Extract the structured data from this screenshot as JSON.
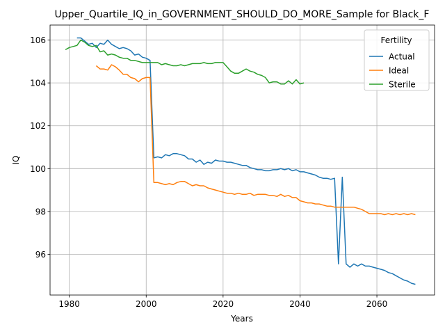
{
  "chart_data": {
    "type": "line",
    "title": "Upper_Quartile_IQ_in_GOVERNMENT_SHOULD_DO_MORE_Sample for Black_F",
    "xlabel": "Years",
    "ylabel": "IQ",
    "xlim": [
      1975,
      2075
    ],
    "ylim": [
      94.1,
      106.7
    ],
    "x_ticks": [
      1980,
      2000,
      2020,
      2040,
      2060
    ],
    "y_ticks": [
      96,
      98,
      100,
      102,
      104,
      106
    ],
    "grid": true,
    "legend": {
      "title": "Fertility",
      "placement": "top-right"
    },
    "series": [
      {
        "name": "Actual",
        "color": "#1f77b4",
        "x": [
          1982,
          1983,
          1984,
          1985,
          1986,
          1987,
          1988,
          1989,
          1990,
          1991,
          1992,
          1993,
          1994,
          1995,
          1996,
          1997,
          1998,
          1999,
          2000,
          2001,
          2002,
          2003,
          2004,
          2005,
          2006,
          2007,
          2008,
          2009,
          2010,
          2011,
          2012,
          2013,
          2014,
          2015,
          2016,
          2017,
          2018,
          2019,
          2020,
          2021,
          2022,
          2023,
          2024,
          2025,
          2026,
          2027,
          2028,
          2029,
          2030,
          2031,
          2032,
          2033,
          2034,
          2035,
          2036,
          2037,
          2038,
          2039,
          2040,
          2041,
          2042,
          2043,
          2044,
          2045,
          2046,
          2047,
          2048,
          2049,
          2050,
          2051,
          2052,
          2053,
          2054,
          2055,
          2056,
          2057,
          2058,
          2059,
          2060,
          2061,
          2062,
          2063,
          2064,
          2065,
          2066,
          2067,
          2068,
          2069,
          2070
        ],
        "values": [
          106.1,
          106.1,
          105.95,
          105.8,
          105.85,
          105.65,
          105.85,
          105.8,
          106.0,
          105.8,
          105.7,
          105.6,
          105.65,
          105.6,
          105.5,
          105.3,
          105.35,
          105.2,
          105.15,
          105.05,
          100.5,
          100.55,
          100.5,
          100.65,
          100.6,
          100.7,
          100.7,
          100.65,
          100.6,
          100.45,
          100.45,
          100.3,
          100.4,
          100.2,
          100.3,
          100.25,
          100.4,
          100.35,
          100.35,
          100.3,
          100.3,
          100.25,
          100.2,
          100.15,
          100.15,
          100.05,
          100.0,
          99.95,
          99.95,
          99.9,
          99.9,
          99.95,
          99.95,
          100.0,
          99.95,
          100.0,
          99.9,
          99.95,
          99.85,
          99.85,
          99.8,
          99.75,
          99.7,
          99.6,
          99.55,
          99.55,
          99.5,
          99.55,
          95.55,
          99.6,
          95.55,
          95.4,
          95.55,
          95.45,
          95.55,
          95.45,
          95.45,
          95.4,
          95.35,
          95.3,
          95.25,
          95.15,
          95.1,
          95.0,
          94.9,
          94.8,
          94.75,
          94.65,
          94.6
        ]
      },
      {
        "name": "Ideal",
        "color": "#ff7f0e",
        "x": [
          1987,
          1988,
          1989,
          1990,
          1991,
          1992,
          1993,
          1994,
          1995,
          1996,
          1997,
          1998,
          1999,
          2000,
          2001,
          2002,
          2003,
          2004,
          2005,
          2006,
          2007,
          2008,
          2009,
          2010,
          2011,
          2012,
          2013,
          2014,
          2015,
          2016,
          2017,
          2018,
          2019,
          2020,
          2021,
          2022,
          2023,
          2024,
          2025,
          2026,
          2027,
          2028,
          2029,
          2030,
          2031,
          2032,
          2033,
          2034,
          2035,
          2036,
          2037,
          2038,
          2039,
          2040,
          2041,
          2042,
          2043,
          2044,
          2045,
          2046,
          2047,
          2048,
          2049,
          2050,
          2051,
          2052,
          2053,
          2054,
          2055,
          2056,
          2057,
          2058,
          2059,
          2060,
          2061,
          2062,
          2063,
          2064,
          2065,
          2066,
          2067,
          2068,
          2069,
          2070
        ],
        "values": [
          104.8,
          104.65,
          104.65,
          104.6,
          104.85,
          104.75,
          104.6,
          104.4,
          104.4,
          104.25,
          104.2,
          104.05,
          104.2,
          104.25,
          104.25,
          99.35,
          99.35,
          99.3,
          99.25,
          99.3,
          99.25,
          99.35,
          99.4,
          99.4,
          99.3,
          99.2,
          99.25,
          99.2,
          99.2,
          99.1,
          99.05,
          99.0,
          98.95,
          98.9,
          98.85,
          98.85,
          98.8,
          98.85,
          98.8,
          98.8,
          98.85,
          98.75,
          98.8,
          98.8,
          98.8,
          98.75,
          98.75,
          98.7,
          98.8,
          98.7,
          98.75,
          98.65,
          98.65,
          98.5,
          98.45,
          98.4,
          98.4,
          98.35,
          98.35,
          98.3,
          98.25,
          98.25,
          98.2,
          98.2,
          98.2,
          98.2,
          98.2,
          98.2,
          98.15,
          98.1,
          98.0,
          97.9,
          97.9,
          97.9,
          97.9,
          97.85,
          97.9,
          97.85,
          97.9,
          97.85,
          97.9,
          97.85,
          97.9,
          97.85
        ]
      },
      {
        "name": "Sterile",
        "color": "#2ca02c",
        "x": [
          1979,
          1980,
          1981,
          1982,
          1983,
          1984,
          1985,
          1986,
          1987,
          1988,
          1989,
          1990,
          1991,
          1992,
          1993,
          1994,
          1995,
          1996,
          1997,
          1998,
          1999,
          2000,
          2001,
          2002,
          2003,
          2004,
          2005,
          2006,
          2007,
          2008,
          2009,
          2010,
          2011,
          2012,
          2013,
          2014,
          2015,
          2016,
          2017,
          2018,
          2019,
          2020,
          2021,
          2022,
          2023,
          2024,
          2025,
          2026,
          2027,
          2028,
          2029,
          2030,
          2031,
          2032,
          2033,
          2034,
          2035,
          2036,
          2037,
          2038,
          2039,
          2040,
          2041
        ],
        "values": [
          105.55,
          105.65,
          105.7,
          105.75,
          106.0,
          105.9,
          105.75,
          105.7,
          105.75,
          105.45,
          105.5,
          105.3,
          105.35,
          105.3,
          105.2,
          105.15,
          105.15,
          105.05,
          105.05,
          105.0,
          104.95,
          104.95,
          104.95,
          104.95,
          104.95,
          104.85,
          104.9,
          104.85,
          104.8,
          104.8,
          104.85,
          104.8,
          104.85,
          104.9,
          104.9,
          104.9,
          104.95,
          104.9,
          104.9,
          104.95,
          104.95,
          104.95,
          104.75,
          104.55,
          104.45,
          104.45,
          104.55,
          104.65,
          104.55,
          104.5,
          104.4,
          104.35,
          104.25,
          104.0,
          104.05,
          104.05,
          103.95,
          103.95,
          104.1,
          103.95,
          104.15,
          103.95,
          104.0
        ]
      }
    ]
  }
}
